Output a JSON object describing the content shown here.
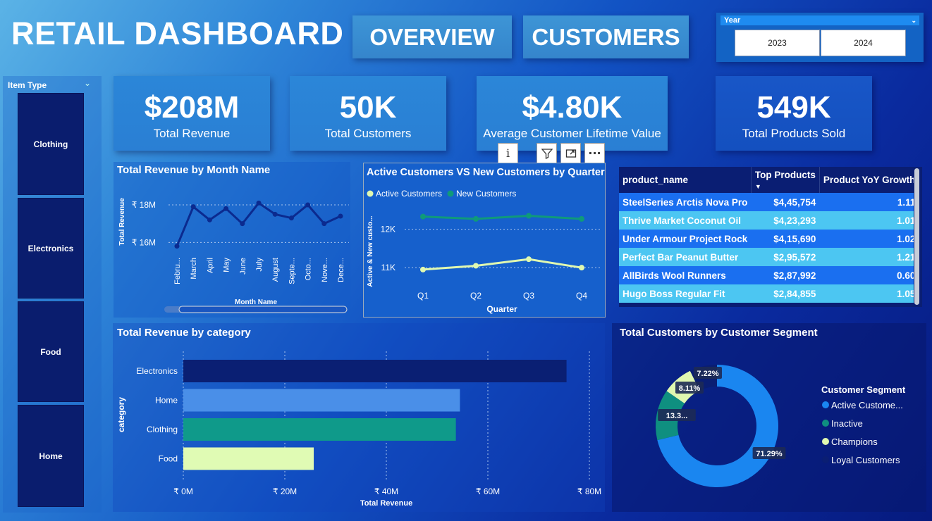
{
  "header": {
    "title": "RETAIL DASHBOARD",
    "nav": [
      "OVERVIEW",
      "CUSTOMERS"
    ]
  },
  "year_slicer": {
    "label": "Year",
    "options": [
      "2023",
      "2024"
    ]
  },
  "item_type_slicer": {
    "label": "Item Type",
    "options": [
      "Clothing",
      "Electronics",
      "Food",
      "Home"
    ]
  },
  "kpis": [
    {
      "value": "$208M",
      "label": "Total Revenue"
    },
    {
      "value": "50K",
      "label": "Total Customers"
    },
    {
      "value": "$4.80K",
      "label": "Average Customer Lifetime Value"
    },
    {
      "value": "549K",
      "label": "Total Products Sold"
    }
  ],
  "visual_header_icons": [
    "info-icon",
    "filter-icon",
    "focus-mode-icon",
    "more-options-icon"
  ],
  "table": {
    "columns": [
      "product_name",
      "Top Products",
      "Product YoY Growth"
    ],
    "rows": [
      [
        "SteelSeries Arctis Nova Pro",
        "$4,45,754",
        "1.11"
      ],
      [
        "Thrive Market Coconut Oil",
        "$4,23,293",
        "1.01"
      ],
      [
        "Under Armour Project Rock",
        "$4,15,690",
        "1.02"
      ],
      [
        "Perfect Bar Peanut Butter",
        "$2,95,572",
        "1.21"
      ],
      [
        "AllBirds Wool Runners",
        "$2,87,992",
        "0.60"
      ],
      [
        "Hugo Boss Regular Fit",
        "$2,84,855",
        "1.05"
      ]
    ]
  },
  "chart_data": [
    {
      "type": "line",
      "title": "Total Revenue by Month Name",
      "xlabel": "Month Name",
      "ylabel": "Total Revenue",
      "categories": [
        "Febru...",
        "March",
        "April",
        "May",
        "June",
        "July",
        "August",
        "Septe...",
        "Octo...",
        "Nove...",
        "Dece..."
      ],
      "values": [
        15.8,
        17.9,
        17.2,
        17.8,
        17.0,
        18.1,
        17.5,
        17.3,
        18.0,
        17.0,
        17.4
      ],
      "ylim": [
        15.6,
        18.6
      ],
      "yticks": [
        16,
        18
      ],
      "ytick_labels": [
        "₹ 16M",
        "₹ 18M"
      ],
      "color": "#0b2a8f"
    },
    {
      "type": "line",
      "title": "Active Customers VS New Customers by Quarter",
      "xlabel": "Quarter",
      "ylabel": "Active & New custo...",
      "categories": [
        "Q1",
        "Q2",
        "Q3",
        "Q4"
      ],
      "series": [
        {
          "name": "Active Customers",
          "values": [
            10950,
            11050,
            11220,
            11000
          ],
          "color": "#e0f8b0"
        },
        {
          "name": "New Customers",
          "values": [
            12330,
            12270,
            12350,
            12270
          ],
          "color": "#0f9a7a"
        }
      ],
      "ylim": [
        10600,
        12800
      ],
      "yticks": [
        11000,
        12000
      ],
      "ytick_labels": [
        "11K",
        "12K"
      ]
    },
    {
      "type": "bar",
      "orientation": "horizontal",
      "title": "Total Revenue by category",
      "xlabel": "Total Revenue",
      "ylabel": "category",
      "categories": [
        "Electronics",
        "Home",
        "Clothing",
        "Food"
      ],
      "values": [
        75.5,
        54.5,
        53.7,
        25.7
      ],
      "colors": [
        "#0a1f73",
        "#4a8fe8",
        "#0f9a8a",
        "#e0fbb4"
      ],
      "xlim": [
        0,
        80
      ],
      "xticks": [
        0,
        20,
        40,
        60,
        80
      ],
      "xtick_labels": [
        "₹ 0M",
        "₹ 20M",
        "₹ 40M",
        "₹ 60M",
        "₹ 80M"
      ]
    },
    {
      "type": "pie",
      "donut": true,
      "title": "Total Customers by Customer Segment",
      "legend_title": "Customer Segment",
      "categories": [
        "Active Custome...",
        "Inactive",
        "Champions",
        "Loyal Customers"
      ],
      "values": [
        71.29,
        13.38,
        8.11,
        7.22
      ],
      "labels": [
        "71.29%",
        "13.3...",
        "8.11%",
        "7.22%"
      ],
      "colors": [
        "#1a86f0",
        "#0f8f80",
        "#e0f8b0",
        "#0a1e73"
      ]
    }
  ]
}
